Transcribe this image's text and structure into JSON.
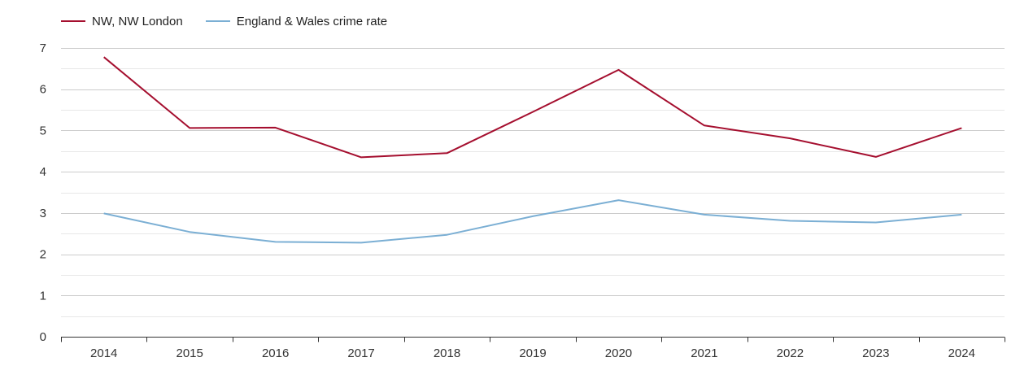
{
  "colors": {
    "nw": "#a50f2f",
    "ew": "#7bafd4",
    "grid_major": "#cccccc",
    "grid_minor": "#e8e8e8",
    "axis": "#333333"
  },
  "legend": [
    {
      "label": "NW, NW London",
      "color": "#a50f2f"
    },
    {
      "label": "England & Wales crime rate",
      "color": "#7bafd4"
    }
  ],
  "chart_data": {
    "type": "line",
    "title": "",
    "xlabel": "",
    "ylabel": "",
    "x": [
      "2014",
      "2015",
      "2016",
      "2017",
      "2018",
      "2019",
      "2020",
      "2021",
      "2022",
      "2023",
      "2024"
    ],
    "ylim": [
      0,
      7
    ],
    "yticks": [
      0,
      1,
      2,
      3,
      4,
      5,
      6,
      7
    ],
    "grid": true,
    "legend_position": "top-left",
    "series": [
      {
        "name": "NW, NW London",
        "color": "#a50f2f",
        "values": [
          6.78,
          5.06,
          5.07,
          4.35,
          4.45,
          5.45,
          6.47,
          5.12,
          4.81,
          4.36,
          5.06
        ]
      },
      {
        "name": "England & Wales crime rate",
        "color": "#7bafd4",
        "values": [
          2.99,
          2.54,
          2.3,
          2.28,
          2.47,
          2.92,
          3.31,
          2.96,
          2.81,
          2.77,
          2.96
        ]
      }
    ]
  }
}
